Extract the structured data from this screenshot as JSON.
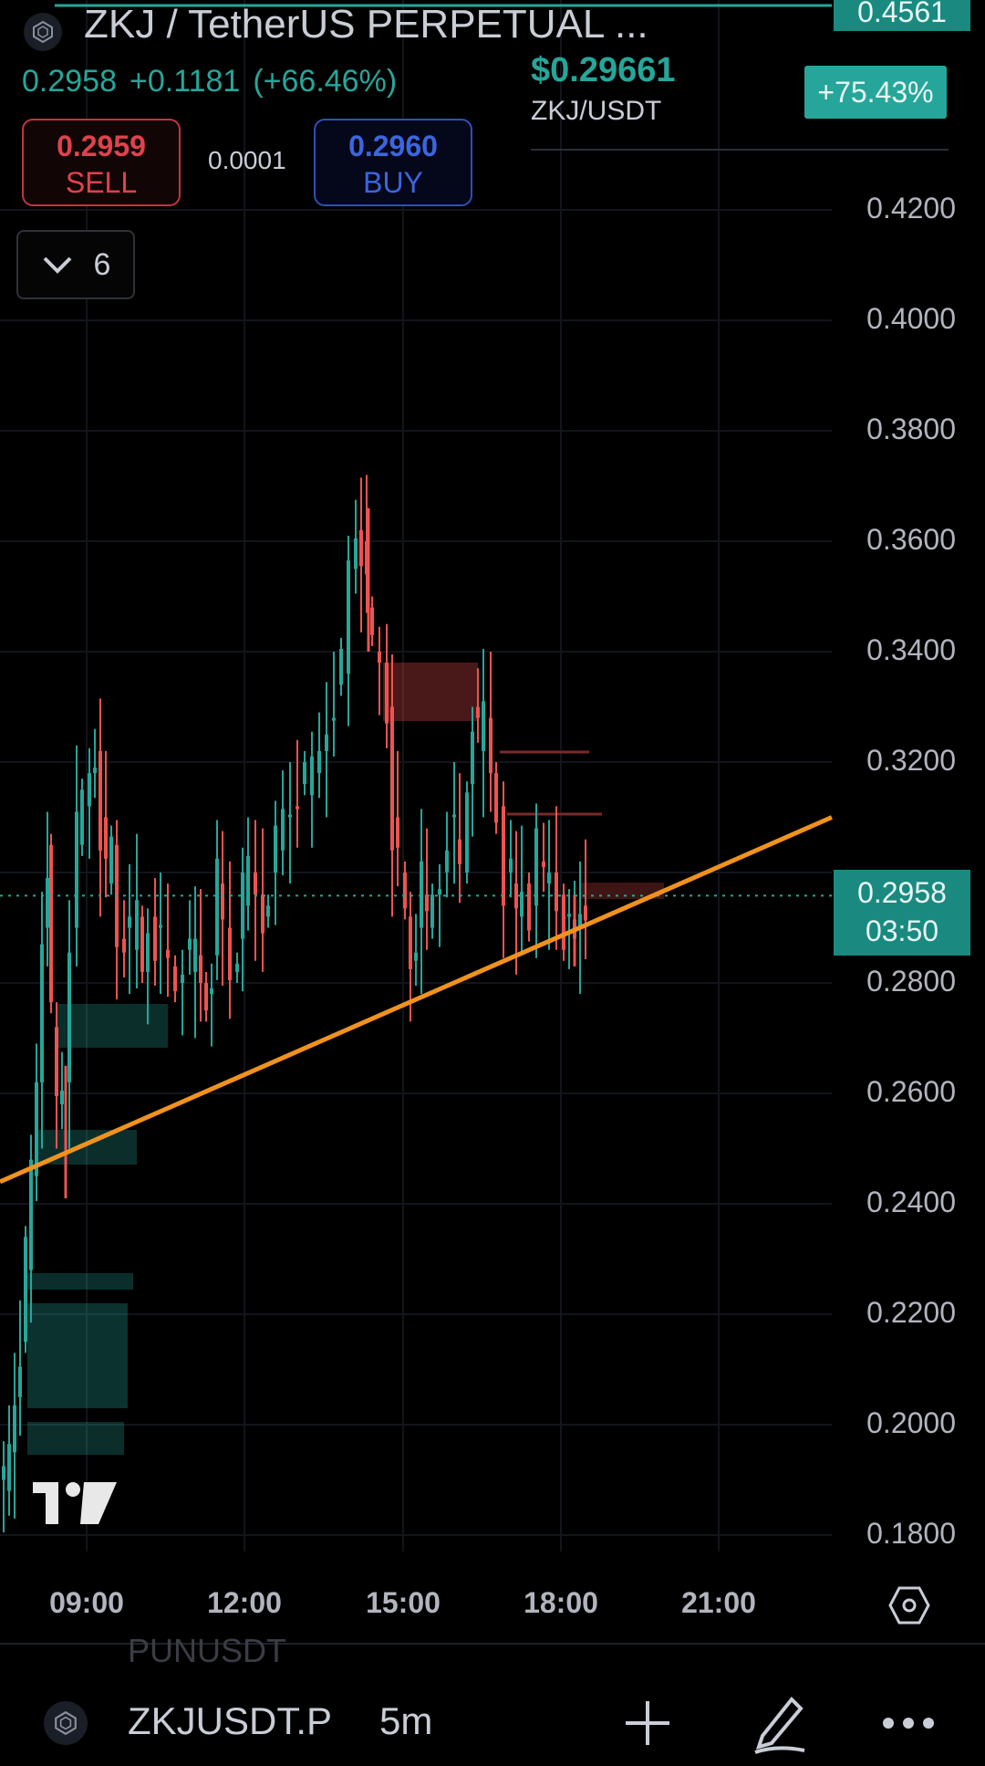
{
  "header": {
    "title": "ZKJ / TetherUS PERPETUAL ...",
    "last_price": "0.2958",
    "change": "+0.1181",
    "change_pct": "(+66.46%)",
    "sell_price": "0.2959",
    "sell_label": "SELL",
    "spread": "0.0001",
    "buy_price": "0.2960",
    "buy_label": "BUY",
    "indicators_count": "6"
  },
  "ticker_overlay": {
    "price": "$0.29661",
    "pair": "ZKJ/USDT",
    "pct": "+75.43%"
  },
  "price_scale": {
    "top_tag": "0.4561",
    "current_price": "0.2958",
    "countdown": "03:50",
    "labels": [
      "0.4200",
      "0.4000",
      "0.3800",
      "0.3600",
      "0.3400",
      "0.3200",
      "0.2800",
      "0.2600",
      "0.2400",
      "0.2200",
      "0.2000",
      "0.1800"
    ]
  },
  "time_axis": {
    "labels": [
      "09:00",
      "12:00",
      "15:00",
      "18:00",
      "21:00"
    ]
  },
  "bottom_bar": {
    "ghost_text": "PUNUSDT",
    "symbol": "ZKJUSDT.P",
    "interval": "5m",
    "icons": [
      "add-icon",
      "draw-icon",
      "more-icon"
    ]
  },
  "colors": {
    "up": "#26a69a",
    "down": "#ef5350",
    "trendline": "#f0921e",
    "background": "#000000",
    "sell": "#e0424c",
    "buy": "#3b66e0"
  },
  "chart_data": {
    "type": "candlestick",
    "symbol": "ZKJUSDT.P",
    "interval": "5m",
    "y_range": [
      0.18,
      0.46
    ],
    "x_ticks": [
      "09:00",
      "12:00",
      "15:00",
      "18:00",
      "21:00"
    ],
    "last_price": 0.2958,
    "trendline": {
      "start_price": 0.244,
      "end_price": 0.31
    },
    "key_levels": {
      "high": 0.366,
      "low": 0.18,
      "recent_low": 0.283
    }
  }
}
